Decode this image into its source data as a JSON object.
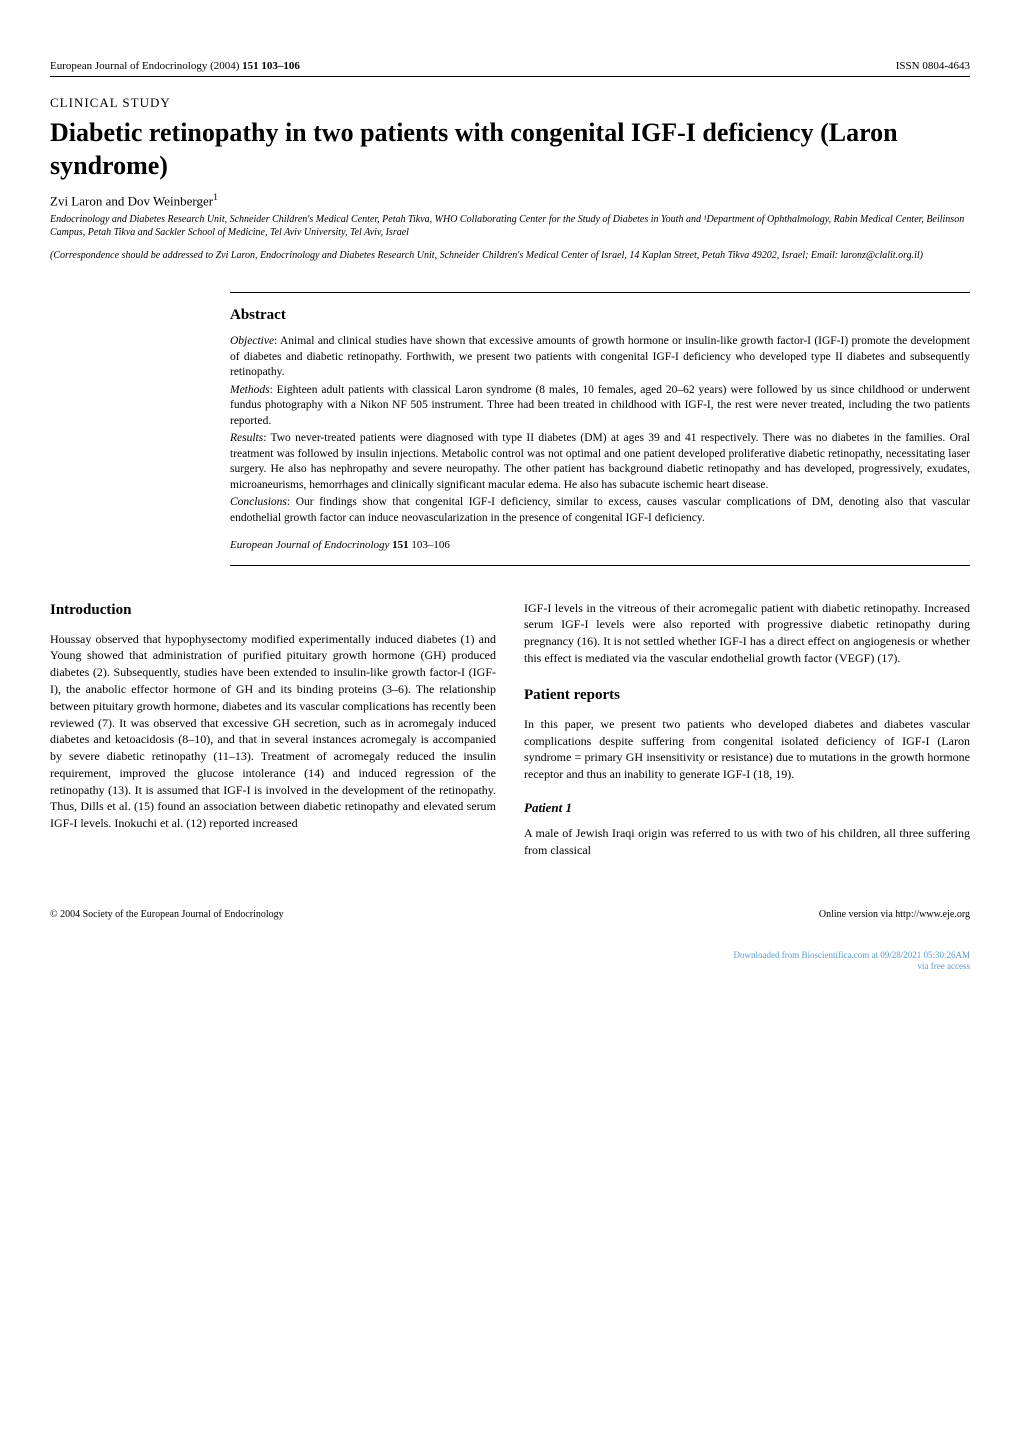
{
  "header": {
    "journal": "European Journal of Endocrinology (2004)",
    "volume_pages": "151 103–106",
    "issn": "ISSN 0804-4643"
  },
  "article": {
    "study_type": "CLINICAL STUDY",
    "title": "Diabetic retinopathy in two patients with congenital IGF-I deficiency (Laron syndrome)",
    "authors": "Zvi Laron and Dov Weinberger",
    "author_sup": "1",
    "affiliation": "Endocrinology and Diabetes Research Unit, Schneider Children's Medical Center, Petah Tikva, WHO Collaborating Center for the Study of Diabetes in Youth and ¹Department of Ophthalmology, Rabin Medical Center, Beilinson Campus, Petah Tikva and Sackler School of Medicine, Tel Aviv University, Tel Aviv, Israel",
    "correspondence": "(Correspondence should be addressed to Zvi Laron, Endocrinology and Diabetes Research Unit, Schneider Children's Medical Center of Israel, 14 Kaplan Street, Petah Tikva 49202, Israel; Email: laronz@clalit.org.il)"
  },
  "abstract": {
    "heading": "Abstract",
    "objective_label": "Objective",
    "objective": ": Animal and clinical studies have shown that excessive amounts of growth hormone or insulin-like growth factor-I (IGF-I) promote the development of diabetes and diabetic retinopathy. Forthwith, we present two patients with congenital IGF-I deficiency who developed type II diabetes and subsequently retinopathy.",
    "methods_label": "Methods",
    "methods": ": Eighteen adult patients with classical Laron syndrome (8 males, 10 females, aged 20–62 years) were followed by us since childhood or underwent fundus photography with a Nikon NF 505 instrument. Three had been treated in childhood with IGF-I, the rest were never treated, including the two patients reported.",
    "results_label": "Results",
    "results": ": Two never-treated patients were diagnosed with type II diabetes (DM) at ages 39 and 41 respectively. There was no diabetes in the families. Oral treatment was followed by insulin injections. Metabolic control was not optimal and one patient developed proliferative diabetic retinopathy, necessitating laser surgery. He also has nephropathy and severe neuropathy. The other patient has background diabetic retinopathy and has developed, progressively, exudates, microaneurisms, hemorrhages and clinically significant macular edema. He also has subacute ischemic heart disease.",
    "conclusions_label": "Conclusions",
    "conclusions": ": Our findings show that congenital IGF-I deficiency, similar to excess, causes vascular complications of DM, denoting also that vascular endothelial growth factor can induce neovascularization in the presence of congenital IGF-I deficiency.",
    "citation_journal": "European Journal of Endocrinology",
    "citation_vol": "151",
    "citation_pages": "103–106"
  },
  "sections": {
    "intro_heading": "Introduction",
    "intro_text": "Houssay observed that hypophysectomy modified experimentally induced diabetes (1) and Young showed that administration of purified pituitary growth hormone (GH) produced diabetes (2). Subsequently, studies have been extended to insulin-like growth factor-I (IGF-I), the anabolic effector hormone of GH and its binding proteins (3–6). The relationship between pituitary growth hormone, diabetes and its vascular complications has recently been reviewed (7). It was observed that excessive GH secretion, such as in acromegaly induced diabetes and ketoacidosis (8–10), and that in several instances acromegaly is accompanied by severe diabetic retinopathy (11–13). Treatment of acromegaly reduced the insulin requirement, improved the glucose intolerance (14) and induced regression of the retinopathy (13). It is assumed that IGF-I is involved in the development of the retinopathy. Thus, Dills et al. (15) found an association between diabetic retinopathy and elevated serum IGF-I levels. Inokuchi et al. (12) reported increased",
    "intro_continuation": "IGF-I levels in the vitreous of their acromegalic patient with diabetic retinopathy. Increased serum IGF-I levels were also reported with progressive diabetic retinopathy during pregnancy (16). It is not settled whether IGF-I has a direct effect on angiogenesis or whether this effect is mediated via the vascular endothelial growth factor (VEGF) (17).",
    "reports_heading": "Patient reports",
    "reports_text": "In this paper, we present two patients who developed diabetes and diabetes vascular complications despite suffering from congenital isolated deficiency of IGF-I (Laron syndrome = primary GH insensitivity or resistance) due to mutations in the growth hormone receptor and thus an inability to generate IGF-I (18, 19).",
    "patient1_heading": "Patient 1",
    "patient1_text": "A male of Jewish Iraqi origin was referred to us with two of his children, all three suffering from classical"
  },
  "footer": {
    "copyright": "© 2004 Society of the European Journal of Endocrinology",
    "online": "Online version via http://www.eje.org"
  },
  "watermark": {
    "line1": "Downloaded from Bioscientifica.com at 09/28/2021 05:30:26AM",
    "line2": "via free access"
  },
  "colors": {
    "text": "#000000",
    "background": "#ffffff",
    "watermark": "#5a9bd4"
  }
}
